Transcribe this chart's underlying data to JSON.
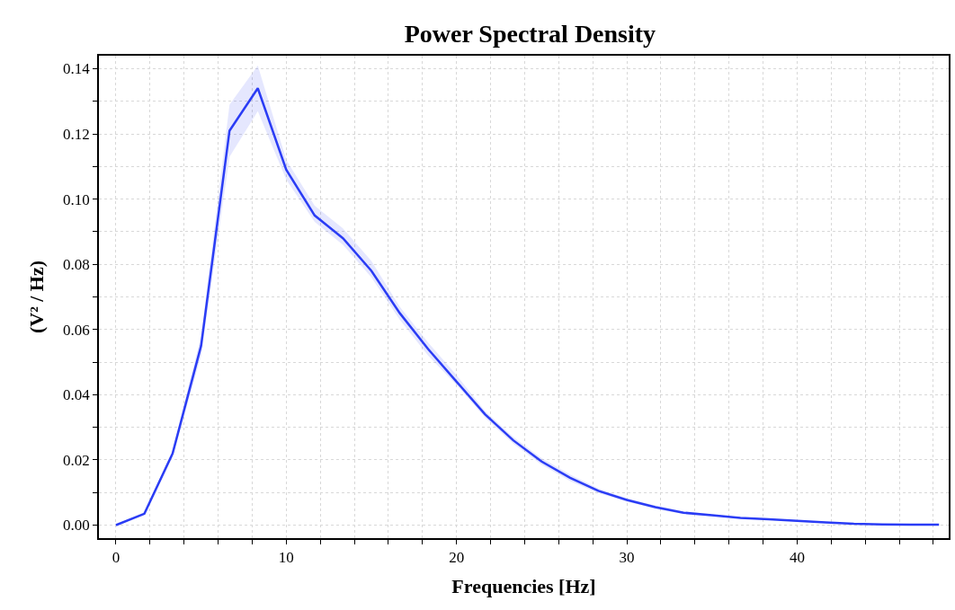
{
  "chart_data": {
    "type": "line",
    "title": "Power Spectral Density",
    "xlabel": "Frequencies [Hz]",
    "ylabel": "(V² / Hz)",
    "x": [
      0,
      1.67,
      3.33,
      5,
      6.67,
      8.33,
      10,
      11.67,
      13.33,
      15,
      16.67,
      18.33,
      20,
      21.67,
      23.33,
      25,
      26.67,
      28.33,
      30,
      31.67,
      33.33,
      35,
      36.67,
      38.33,
      40,
      41.67,
      43.33,
      45,
      46.67,
      48.33
    ],
    "series": [
      {
        "color": "#2a3cf5",
        "values": [
          0,
          0.0035,
          0.022,
          0.055,
          0.121,
          0.134,
          0.109,
          0.095,
          0.088,
          0.078,
          0.065,
          0.054,
          0.044,
          0.034,
          0.026,
          0.0195,
          0.0145,
          0.0105,
          0.0077,
          0.0055,
          0.0038,
          0.003,
          0.0022,
          0.0018,
          0.0013,
          0.0008,
          0.0004,
          0.0002,
          0.0001,
          0.0001
        ],
        "lower": [
          0,
          0.003,
          0.021,
          0.052,
          0.113,
          0.127,
          0.106,
          0.093,
          0.086,
          0.076,
          0.063,
          0.052,
          0.043,
          0.033,
          0.025,
          0.0185,
          0.0135,
          0.0098,
          0.0072,
          0.005,
          0.0034,
          0.0027,
          0.002,
          0.0016,
          0.0011,
          0.0007,
          0.0003,
          0.0001,
          0.0001,
          0.0001
        ],
        "upper": [
          0,
          0.004,
          0.023,
          0.058,
          0.129,
          0.141,
          0.112,
          0.098,
          0.091,
          0.081,
          0.067,
          0.056,
          0.046,
          0.035,
          0.027,
          0.0205,
          0.0155,
          0.0112,
          0.0082,
          0.006,
          0.0042,
          0.0033,
          0.0024,
          0.002,
          0.0015,
          0.001,
          0.0005,
          0.0003,
          0.0002,
          0.0002
        ]
      }
    ],
    "xlim": [
      -1,
      48.9
    ],
    "ylim": [
      -0.004,
      0.144
    ],
    "xticks": [
      0,
      {
        "value": 2,
        "label": null
      },
      {
        "value": 4,
        "label": null
      },
      {
        "value": 6,
        "label": null
      },
      {
        "value": 8,
        "label": null
      },
      10,
      {
        "value": 12,
        "label": null
      },
      {
        "value": 14,
        "label": null
      },
      {
        "value": 16,
        "label": null
      },
      {
        "value": 18,
        "label": null
      },
      20,
      {
        "value": 22,
        "label": null
      },
      {
        "value": 24,
        "label": null
      },
      {
        "value": 26,
        "label": null
      },
      {
        "value": 28,
        "label": null
      },
      30,
      {
        "value": 32,
        "label": null
      },
      {
        "value": 34,
        "label": null
      },
      {
        "value": 36,
        "label": null
      },
      {
        "value": 38,
        "label": null
      },
      40,
      {
        "value": 42,
        "label": null
      },
      {
        "value": 44,
        "label": null
      },
      {
        "value": 46,
        "label": null
      },
      {
        "value": 48,
        "label": null
      }
    ],
    "yticks": [
      {
        "value": 0,
        "label": "0.00"
      },
      {
        "value": 0.01,
        "label": null
      },
      {
        "value": 0.02,
        "label": "0.02"
      },
      {
        "value": 0.03,
        "label": null
      },
      {
        "value": 0.04,
        "label": "0.04"
      },
      {
        "value": 0.05,
        "label": null
      },
      {
        "value": 0.06,
        "label": "0.06"
      },
      {
        "value": 0.07,
        "label": null
      },
      {
        "value": 0.08,
        "label": "0.08"
      },
      {
        "value": 0.09,
        "label": null
      },
      {
        "value": 0.1,
        "label": "0.10"
      },
      {
        "value": 0.11,
        "label": null
      },
      {
        "value": 0.12,
        "label": "0.12"
      },
      {
        "value": 0.13,
        "label": null
      },
      {
        "value": 0.14,
        "label": "0.14"
      }
    ],
    "grid": true,
    "marker": "none",
    "line_style": "solid"
  }
}
